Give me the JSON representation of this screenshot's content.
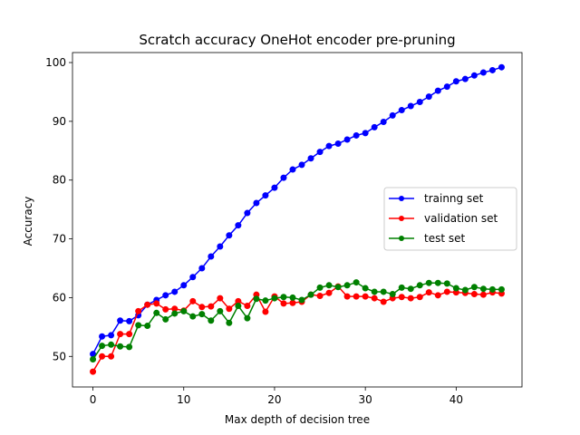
{
  "chart_data": {
    "type": "line",
    "title": "Scratch accuracy OneHot encoder pre-pruning",
    "xlabel": "Max depth of decision tree",
    "ylabel": "Accuracy",
    "xlim": [
      -2.25,
      47.25
    ],
    "ylim": [
      44.8,
      101.7
    ],
    "xticks": [
      0,
      10,
      20,
      30,
      40
    ],
    "yticks": [
      50,
      60,
      70,
      80,
      90,
      100
    ],
    "grid": false,
    "legend_position": "center-right",
    "x": [
      0,
      1,
      2,
      3,
      4,
      5,
      6,
      7,
      8,
      9,
      10,
      11,
      12,
      13,
      14,
      15,
      16,
      17,
      18,
      19,
      20,
      21,
      22,
      23,
      24,
      25,
      26,
      27,
      28,
      29,
      30,
      31,
      32,
      33,
      34,
      35,
      36,
      37,
      38,
      39,
      40,
      41,
      42,
      43,
      44,
      45
    ],
    "series": [
      {
        "name": "trainng set",
        "color": "#0000ff",
        "values": [
          50.4,
          53.4,
          53.6,
          56.1,
          56.0,
          57.0,
          58.8,
          59.6,
          60.4,
          61.0,
          62.1,
          63.5,
          65.0,
          67.0,
          68.7,
          70.6,
          72.3,
          74.4,
          76.1,
          77.4,
          78.7,
          80.4,
          81.8,
          82.6,
          83.7,
          84.8,
          85.8,
          86.2,
          86.9,
          87.6,
          88.0,
          89.0,
          89.9,
          91.0,
          91.9,
          92.6,
          93.3,
          94.2,
          95.2,
          95.9,
          96.8,
          97.2,
          97.8,
          98.3,
          98.7,
          99.2
        ]
      },
      {
        "name": "validation set",
        "color": "#ff0000",
        "values": [
          47.4,
          50.0,
          50.0,
          53.8,
          53.8,
          57.7,
          58.8,
          59.0,
          58.0,
          58.1,
          57.8,
          59.4,
          58.4,
          58.5,
          59.9,
          58.1,
          59.4,
          58.6,
          60.5,
          57.6,
          60.2,
          59.0,
          59.1,
          59.3,
          60.5,
          60.3,
          60.8,
          61.9,
          60.2,
          60.2,
          60.2,
          59.9,
          59.3,
          59.9,
          60.1,
          59.9,
          60.1,
          60.9,
          60.4,
          61.0,
          60.9,
          60.8,
          60.6,
          60.5,
          60.9,
          60.7
        ]
      },
      {
        "name": "test set",
        "color": "#008000",
        "values": [
          49.5,
          51.8,
          52.0,
          51.7,
          51.6,
          55.3,
          55.2,
          57.4,
          56.3,
          57.3,
          57.7,
          56.8,
          57.2,
          56.1,
          57.7,
          55.7,
          58.6,
          56.5,
          59.8,
          59.5,
          59.9,
          60.1,
          60.0,
          59.6,
          60.5,
          61.7,
          62.1,
          61.8,
          62.1,
          62.6,
          61.6,
          61.0,
          61.0,
          60.6,
          61.7,
          61.5,
          62.1,
          62.5,
          62.5,
          62.4,
          61.6,
          61.3,
          61.8,
          61.5,
          61.4,
          61.4
        ]
      }
    ]
  }
}
